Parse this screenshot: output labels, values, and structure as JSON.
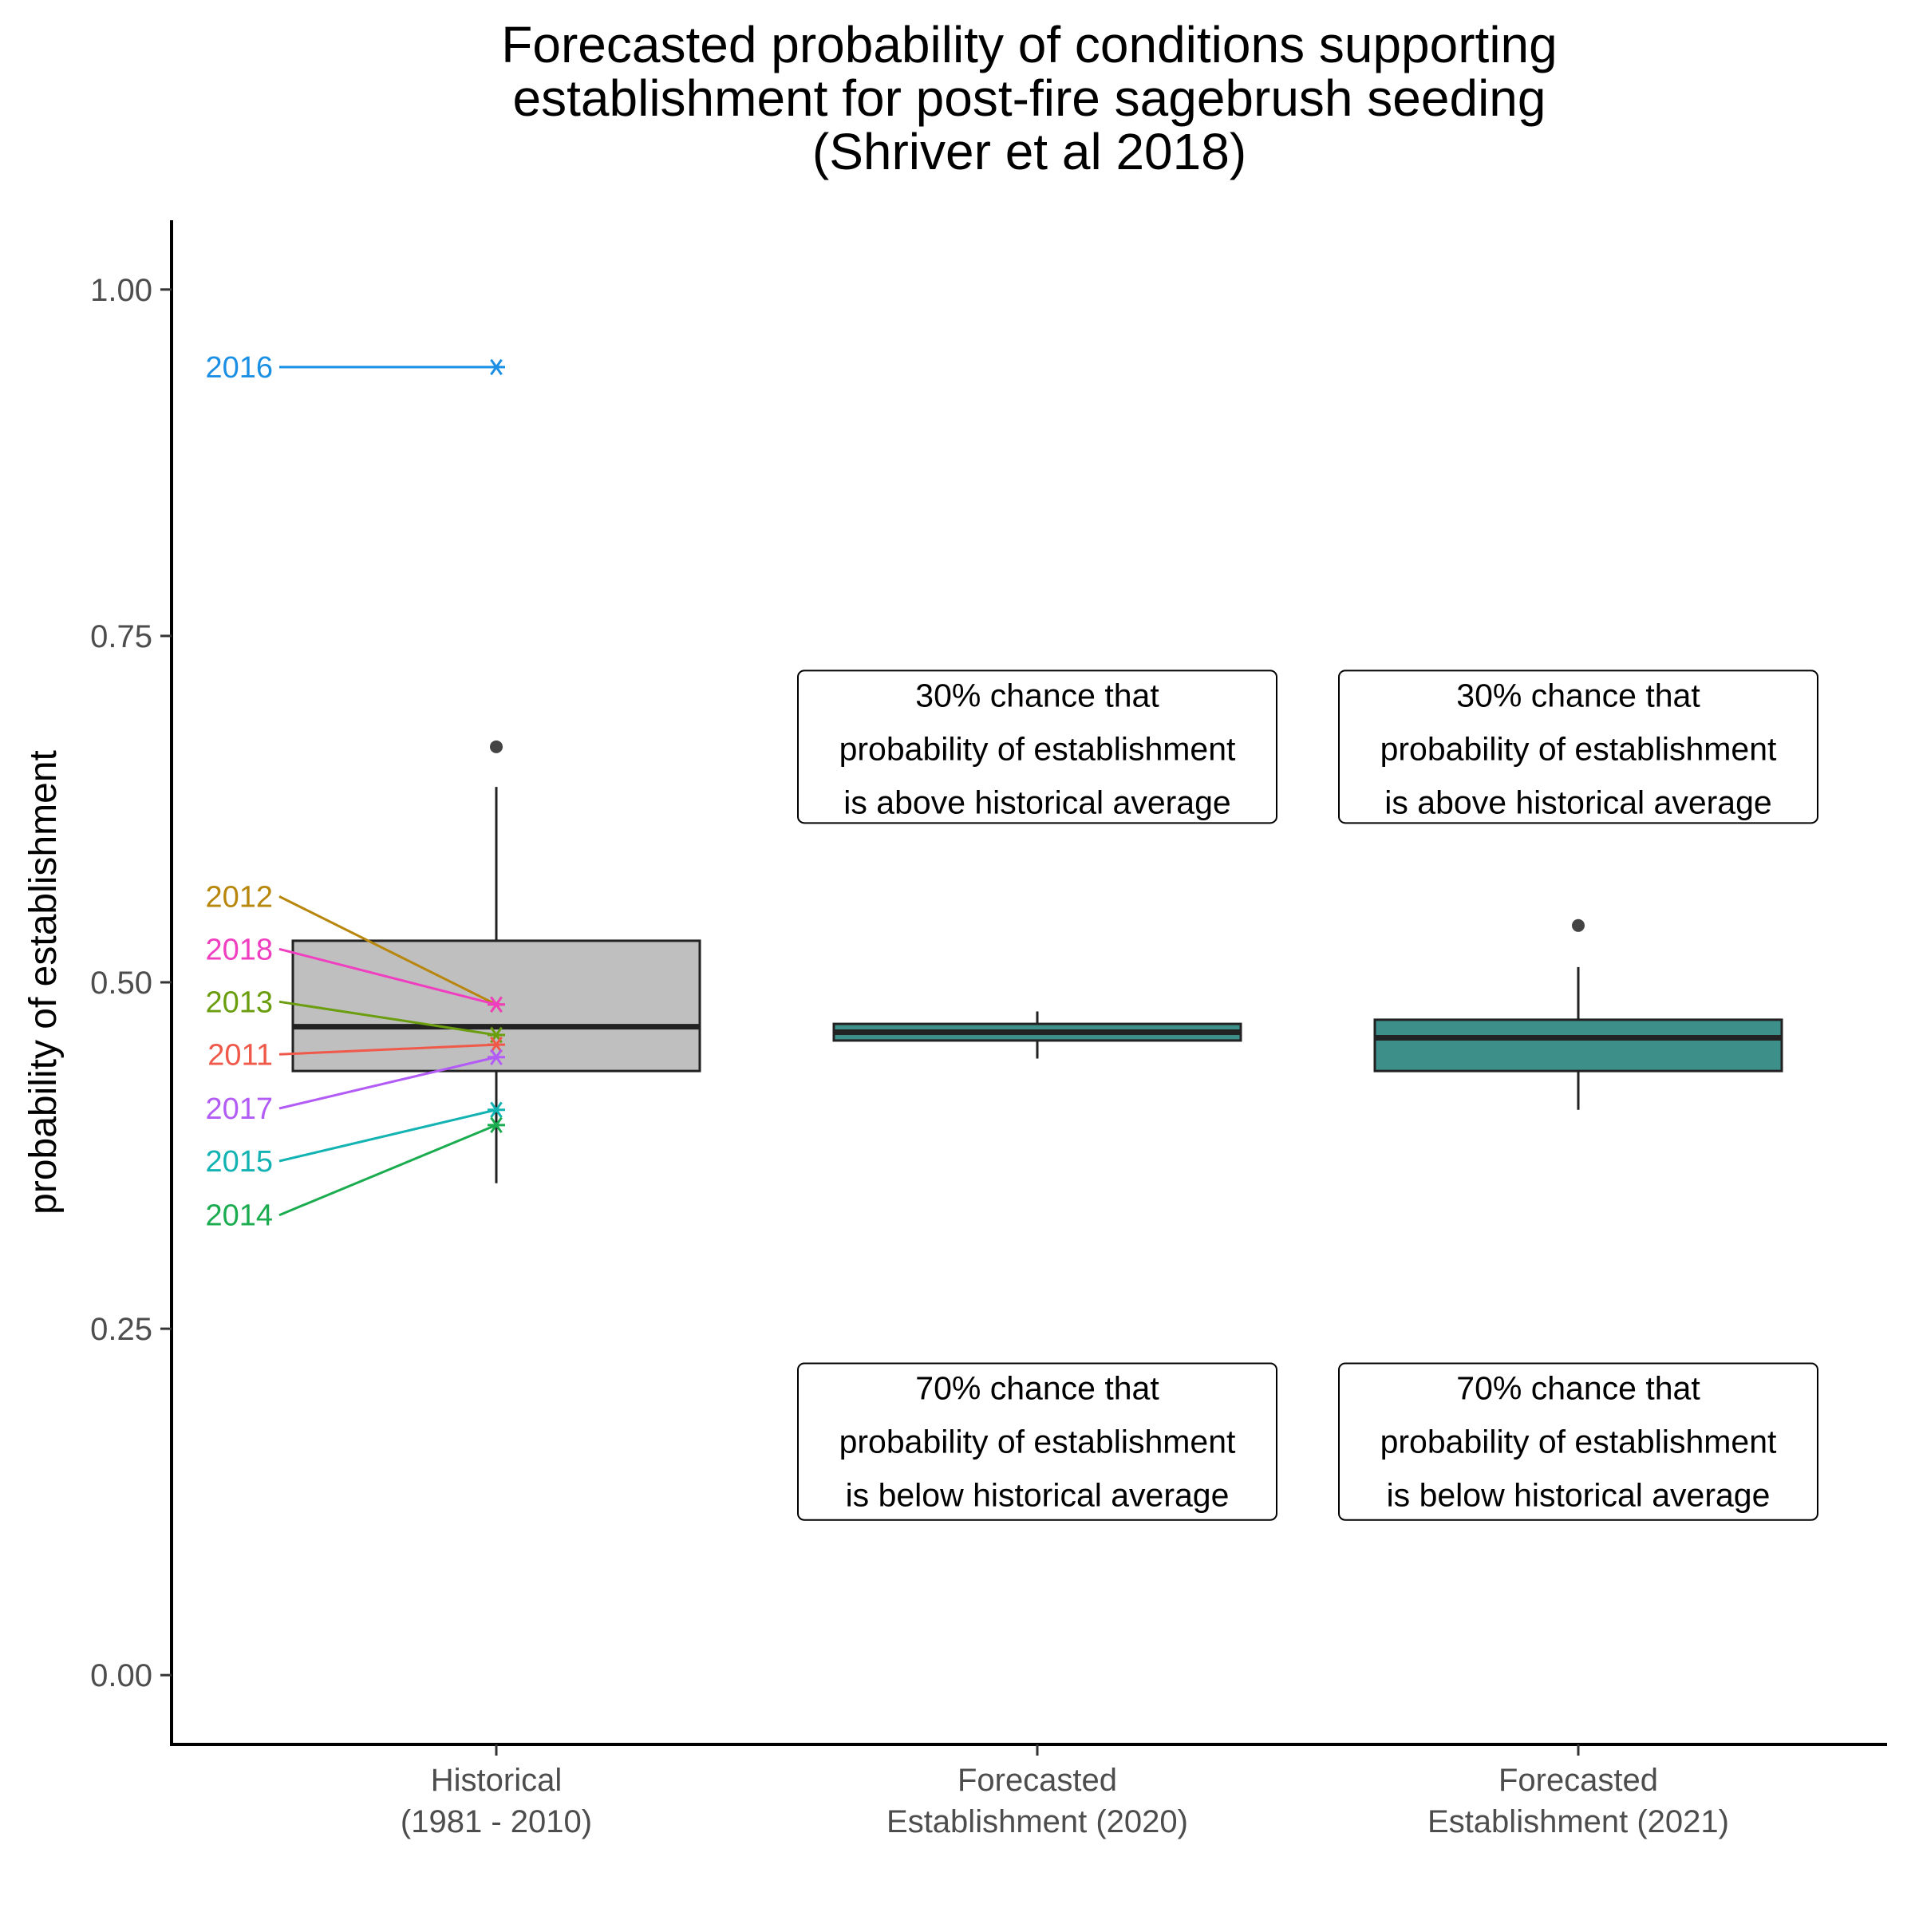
{
  "chart_data": {
    "type": "box",
    "title": [
      "Forecasted probability of conditions supporting",
      "establishment for post-fire sagebrush seeding",
      "(Shriver et al 2018)"
    ],
    "xlabel": "",
    "ylabel": "probability of establishment",
    "ylim": [
      -0.05,
      1.05
    ],
    "yticks": [
      "0.00",
      "0.25",
      "0.50",
      "0.75",
      "1.00"
    ],
    "ytick_values": [
      0,
      0.25,
      0.5,
      0.75,
      1.0
    ],
    "grid": false,
    "categories": [
      [
        "Historical",
        "(1981 - 2010)"
      ],
      [
        "Forecasted",
        "Establishment (2020)"
      ],
      [
        "Forecasted",
        "Establishment (2021)"
      ]
    ],
    "boxes": [
      {
        "fill": "#bfbfbf",
        "q1": 0.436,
        "median": 0.468,
        "q3": 0.53,
        "whisker_low": 0.355,
        "whisker_high": 0.641,
        "outliers": [
          0.67
        ]
      },
      {
        "fill": "#3d8f8a",
        "q1": 0.458,
        "median": 0.464,
        "q3": 0.47,
        "whisker_low": 0.445,
        "whisker_high": 0.479,
        "outliers": []
      },
      {
        "fill": "#3d8f8a",
        "q1": 0.436,
        "median": 0.46,
        "q3": 0.473,
        "whisker_low": 0.408,
        "whisker_high": 0.511,
        "outliers": [
          0.541
        ]
      }
    ],
    "year_points": [
      {
        "year": "2016",
        "value": 0.944,
        "label_value": 0.944,
        "color": "#1a8fe3"
      },
      {
        "year": "2012",
        "value": 0.484,
        "label_value": 0.562,
        "color": "#b8860b"
      },
      {
        "year": "2018",
        "value": 0.484,
        "label_value": 0.524,
        "color": "#f03ec0"
      },
      {
        "year": "2013",
        "value": 0.462,
        "label_value": 0.486,
        "color": "#6b9e0f"
      },
      {
        "year": "2011",
        "value": 0.455,
        "label_value": 0.448,
        "color": "#f0594a"
      },
      {
        "year": "2017",
        "value": 0.446,
        "label_value": 0.409,
        "color": "#b35cf5"
      },
      {
        "year": "2015",
        "value": 0.408,
        "label_value": 0.371,
        "color": "#14b3b3"
      },
      {
        "year": "2014",
        "value": 0.397,
        "label_value": 0.332,
        "color": "#1aac4f"
      }
    ],
    "annotations": [
      {
        "lines": [
          "30% chance that",
          "probability of establishment",
          "is above historical average"
        ],
        "category": 1,
        "value_top": 0.725,
        "value_bottom": 0.615
      },
      {
        "lines": [
          "30% chance that",
          "probability of establishment",
          "is above historical average"
        ],
        "category": 2,
        "value_top": 0.725,
        "value_bottom": 0.615
      },
      {
        "lines": [
          "70% chance that",
          "probability of establishment",
          "is below historical average"
        ],
        "category": 1,
        "value_top": 0.225,
        "value_bottom": 0.112
      },
      {
        "lines": [
          "70% chance that",
          "probability of establishment",
          "is below historical average"
        ],
        "category": 2,
        "value_top": 0.225,
        "value_bottom": 0.112
      }
    ]
  }
}
